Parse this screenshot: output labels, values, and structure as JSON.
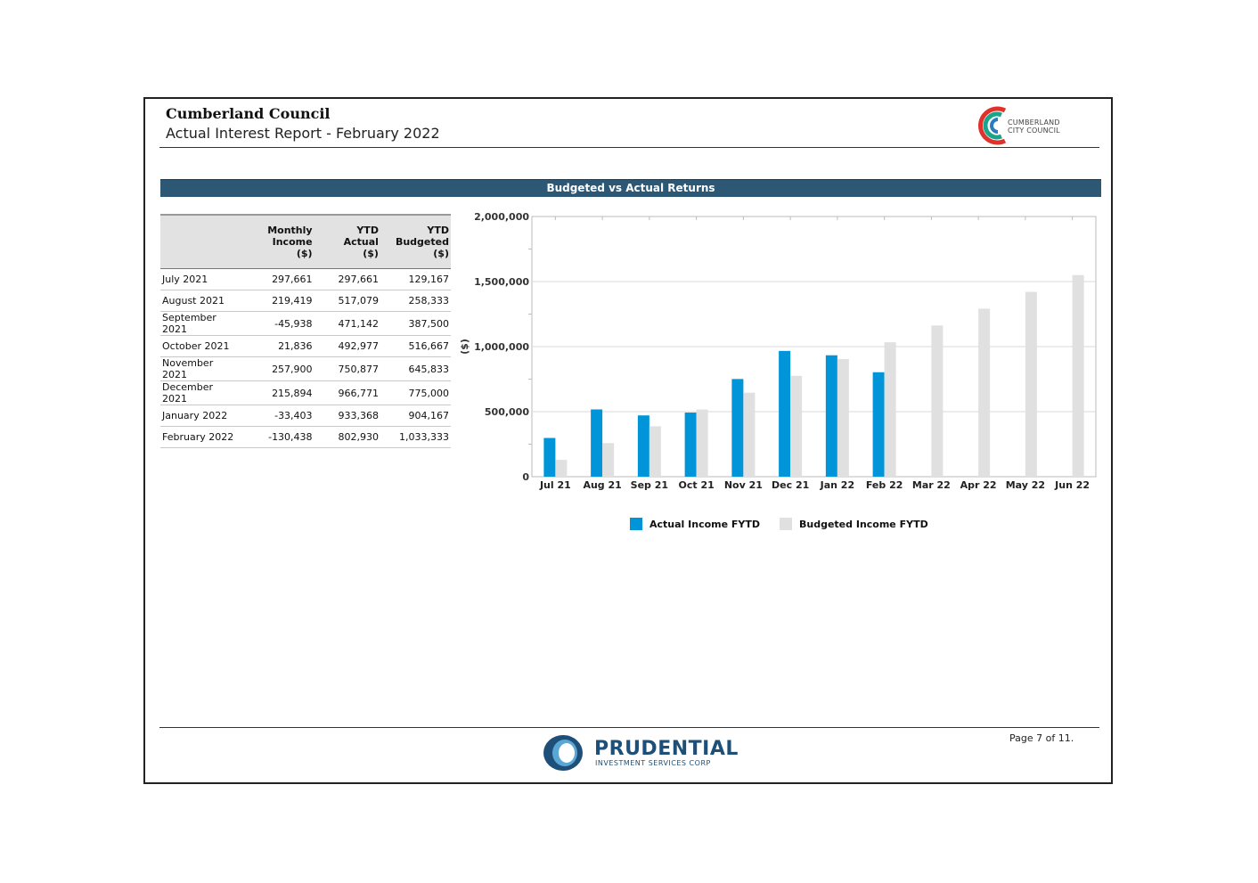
{
  "header": {
    "council": "Cumberland Council",
    "report_title": "Actual Interest Report - February 2022",
    "logo_line1": "CUMBERLAND",
    "logo_line2": "CITY COUNCIL"
  },
  "section": {
    "title": "Budgeted vs Actual Returns"
  },
  "table": {
    "headers": [
      "",
      "Monthly\nIncome\n($)",
      "YTD\nActual\n($)",
      "YTD\nBudgeted\n($)"
    ],
    "rows": [
      [
        "July 2021",
        "297,661",
        "297,661",
        "129,167"
      ],
      [
        "August 2021",
        "219,419",
        "517,079",
        "258,333"
      ],
      [
        "September 2021",
        "-45,938",
        "471,142",
        "387,500"
      ],
      [
        "October 2021",
        "21,836",
        "492,977",
        "516,667"
      ],
      [
        "November 2021",
        "257,900",
        "750,877",
        "645,833"
      ],
      [
        "December 2021",
        "215,894",
        "966,771",
        "775,000"
      ],
      [
        "January 2022",
        "-33,403",
        "933,368",
        "904,167"
      ],
      [
        "February 2022",
        "-130,438",
        "802,930",
        "1,033,333"
      ]
    ]
  },
  "chart_data": {
    "type": "bar",
    "title": "Budgeted vs Actual Returns",
    "ylabel": "($)",
    "xlabel": "",
    "ylim": [
      0,
      2000000
    ],
    "yticks": [
      0,
      500000,
      1000000,
      1500000,
      2000000
    ],
    "ytick_labels": [
      "0",
      "500,000",
      "1,000,000",
      "1,500,000",
      "2,000,000"
    ],
    "grid": true,
    "legend_position": "bottom",
    "categories": [
      "Jul 21",
      "Aug 21",
      "Sep 21",
      "Oct 21",
      "Nov 21",
      "Dec 21",
      "Jan 22",
      "Feb 22",
      "Mar 22",
      "Apr 22",
      "May 22",
      "Jun 22"
    ],
    "series": [
      {
        "name": "Actual Income FYTD",
        "color": "#0095d9",
        "values": [
          297661,
          517079,
          471142,
          492977,
          750877,
          966771,
          933368,
          802930,
          null,
          null,
          null,
          null
        ]
      },
      {
        "name": "Budgeted Income FYTD",
        "color": "#e0e0e0",
        "values": [
          129167,
          258333,
          387500,
          516667,
          645833,
          775000,
          904167,
          1033333,
          1162500,
          1291667,
          1420833,
          1550000
        ]
      }
    ]
  },
  "footer": {
    "brand": "PRUDENTIAL",
    "brand_sub": "INVESTMENT SERVICES CORP",
    "page_number": "Page 7 of 11."
  }
}
